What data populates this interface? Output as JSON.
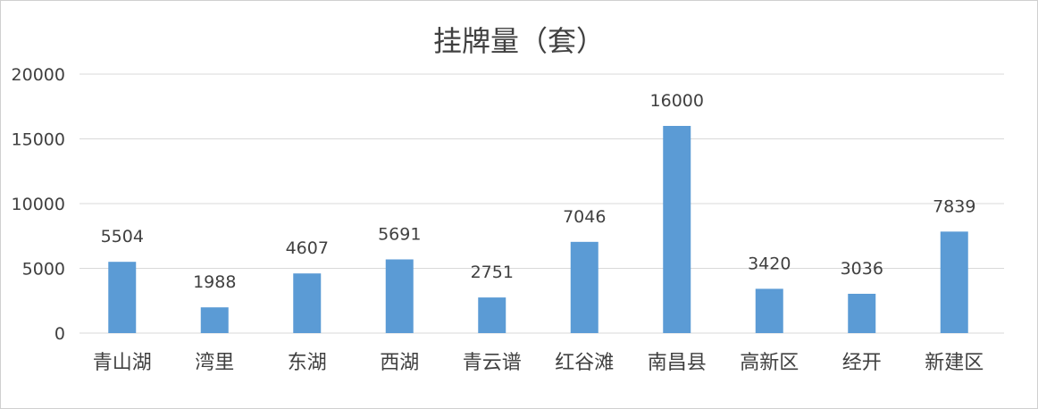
{
  "chart_data": {
    "type": "bar",
    "title": "挂牌量（套）",
    "categories": [
      "青山湖",
      "湾里",
      "东湖",
      "西湖",
      "青云谱",
      "红谷滩",
      "南昌县",
      "高新区",
      "经开",
      "新建区"
    ],
    "values": [
      5504,
      1988,
      4607,
      5691,
      2751,
      7046,
      16000,
      3420,
      3036,
      7839
    ],
    "data_labels": [
      "5504",
      "1988",
      "4607",
      "5691",
      "2751",
      "7046",
      "16000",
      "3420",
      "3036",
      "7839"
    ],
    "ylim": [
      0,
      20000
    ],
    "yticks": [
      0,
      5000,
      10000,
      15000,
      20000
    ],
    "ytick_labels": [
      "0",
      "5000",
      "10000",
      "15000",
      "20000"
    ],
    "grid": true,
    "legend": "none",
    "colors": {
      "bar": "#5b9bd5",
      "grid": "#d9d9d9",
      "text": "#404040"
    }
  }
}
